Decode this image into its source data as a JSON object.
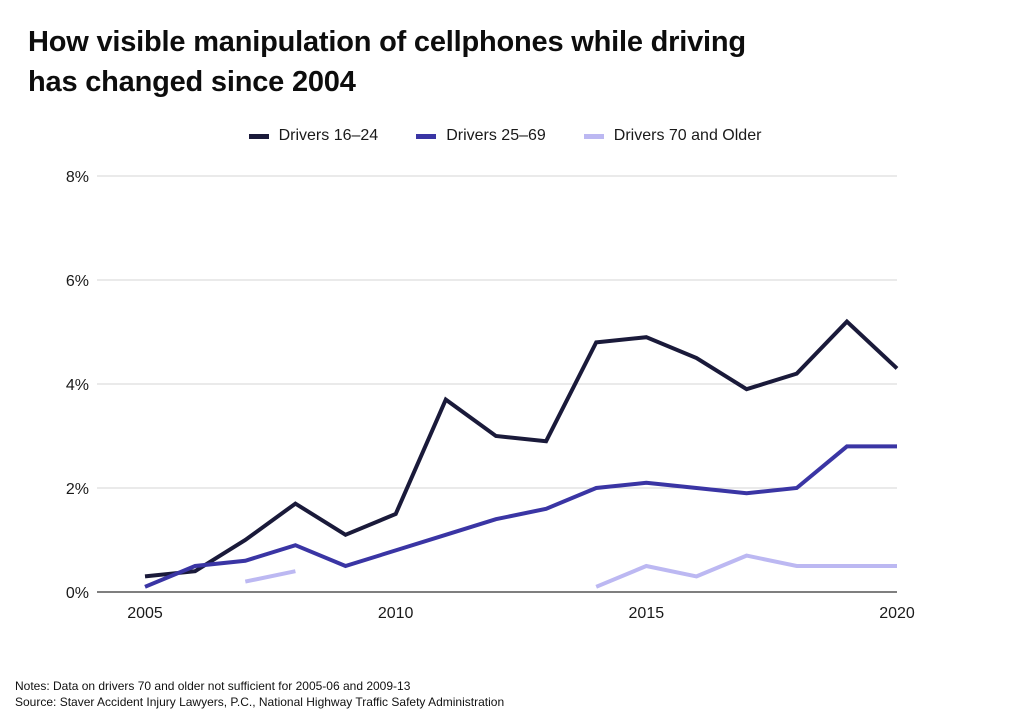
{
  "title_line1": "How visible manipulation of cellphones while driving",
  "title_line2": "has changed since 2004",
  "notes": "Notes: Data on drivers 70 and older not sufficient for 2005-06 and 2009-13",
  "source": "Source: Staver Accident Injury Lawyers, P.C., National Highway Traffic Safety Administration",
  "chart_data": {
    "type": "line",
    "title": "How visible manipulation of cellphones while driving has changed since 2004",
    "xlabel": "",
    "ylabel": "",
    "xlim": [
      2005,
      2020
    ],
    "ylim": [
      0,
      8
    ],
    "x_ticks": [
      2005,
      2010,
      2015,
      2020
    ],
    "x_tick_labels": [
      "2005",
      "2010",
      "2015",
      "2020"
    ],
    "y_ticks": [
      0,
      2,
      4,
      6,
      8
    ],
    "y_tick_labels": [
      "0%",
      "2%",
      "4%",
      "6%",
      "8%"
    ],
    "grid": "horizontal",
    "legend_position": "top-center",
    "series": [
      {
        "name": "Drivers 16–24",
        "color": "#1a1a3a",
        "points": [
          [
            2005,
            0.3
          ],
          [
            2006,
            0.4
          ],
          [
            2007,
            1.0
          ],
          [
            2008,
            1.7
          ],
          [
            2009,
            1.1
          ],
          [
            2010,
            1.5
          ],
          [
            2011,
            3.7
          ],
          [
            2012,
            3.0
          ],
          [
            2013,
            2.9
          ],
          [
            2014,
            4.8
          ],
          [
            2015,
            4.9
          ],
          [
            2016,
            4.5
          ],
          [
            2017,
            3.9
          ],
          [
            2018,
            4.2
          ],
          [
            2019,
            5.2
          ],
          [
            2020,
            4.3
          ]
        ]
      },
      {
        "name": "Drivers 25–69",
        "color": "#3a35a4",
        "points": [
          [
            2005,
            0.1
          ],
          [
            2006,
            0.5
          ],
          [
            2007,
            0.6
          ],
          [
            2008,
            0.9
          ],
          [
            2009,
            0.5
          ],
          [
            2010,
            0.8
          ],
          [
            2011,
            1.1
          ],
          [
            2012,
            1.4
          ],
          [
            2013,
            1.6
          ],
          [
            2014,
            2.0
          ],
          [
            2015,
            2.1
          ],
          [
            2016,
            2.0
          ],
          [
            2017,
            1.9
          ],
          [
            2018,
            2.0
          ],
          [
            2019,
            2.8
          ],
          [
            2020,
            2.8
          ]
        ]
      },
      {
        "name": "Drivers 70 and Older",
        "color": "#bcb8f2",
        "segments": [
          [
            [
              2007,
              0.2
            ],
            [
              2008,
              0.4
            ]
          ],
          [
            [
              2014,
              0.1
            ],
            [
              2015,
              0.5
            ],
            [
              2016,
              0.3
            ],
            [
              2017,
              0.7
            ],
            [
              2018,
              0.5
            ],
            [
              2019,
              0.5
            ],
            [
              2020,
              0.5
            ]
          ]
        ]
      }
    ]
  }
}
